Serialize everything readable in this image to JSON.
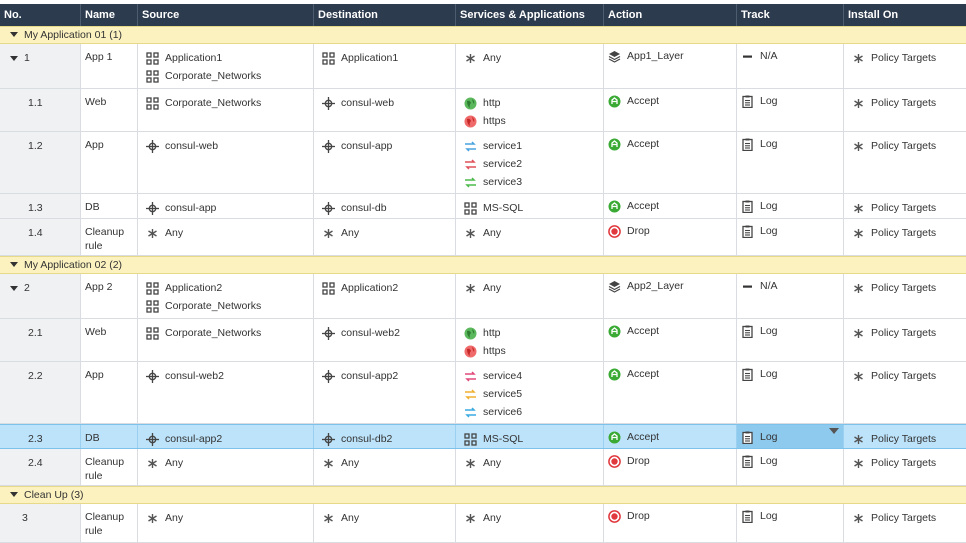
{
  "columns": [
    "No.",
    "Name",
    "Source",
    "Destination",
    "Services & Applications",
    "Action",
    "Track",
    "Install On"
  ],
  "sections": [
    {
      "label": "My Application 01 (1)"
    },
    {
      "label": "My Application 02 (2)"
    },
    {
      "label": "Clean Up (3)"
    }
  ],
  "rows": [
    {
      "no": "1",
      "name": "App 1",
      "source": [
        "Application1",
        "Corporate_Networks"
      ],
      "destination": "Application1",
      "services": [
        "Any"
      ],
      "action": "App1_Layer",
      "track": "N/A",
      "install": "Policy Targets"
    },
    {
      "no": "1.1",
      "name": "Web",
      "source": [
        "Corporate_Networks"
      ],
      "destination": "consul-web",
      "services": [
        "http",
        "https"
      ],
      "action": "Accept",
      "track": "Log",
      "install": "Policy Targets"
    },
    {
      "no": "1.2",
      "name": "App",
      "source": [
        "consul-web"
      ],
      "destination": "consul-app",
      "services": [
        "service1",
        "service2",
        "service3"
      ],
      "action": "Accept",
      "track": "Log",
      "install": "Policy Targets"
    },
    {
      "no": "1.3",
      "name": "DB",
      "source": [
        "consul-app"
      ],
      "destination": "consul-db",
      "services": [
        "MS-SQL"
      ],
      "action": "Accept",
      "track": "Log",
      "install": "Policy Targets"
    },
    {
      "no": "1.4",
      "name": [
        "Cleanup",
        "rule"
      ],
      "source": [
        "Any"
      ],
      "destination": "Any",
      "services": [
        "Any"
      ],
      "action": "Drop",
      "track": "Log",
      "install": "Policy Targets"
    },
    {
      "no": "2",
      "name": "App 2",
      "source": [
        "Application2",
        "Corporate_Networks"
      ],
      "destination": "Application2",
      "services": [
        "Any"
      ],
      "action": "App2_Layer",
      "track": "N/A",
      "install": "Policy Targets"
    },
    {
      "no": "2.1",
      "name": "Web",
      "source": [
        "Corporate_Networks"
      ],
      "destination": "consul-web2",
      "services": [
        "http",
        "https"
      ],
      "action": "Accept",
      "track": "Log",
      "install": "Policy Targets"
    },
    {
      "no": "2.2",
      "name": "App",
      "source": [
        "consul-web2"
      ],
      "destination": "consul-app2",
      "services": [
        "service4",
        "service5",
        "service6"
      ],
      "action": "Accept",
      "track": "Log",
      "install": "Policy Targets"
    },
    {
      "no": "2.3",
      "name": "DB",
      "source": [
        "consul-app2"
      ],
      "destination": "consul-db2",
      "services": [
        "MS-SQL"
      ],
      "action": "Accept",
      "track": "Log",
      "install": "Policy Targets"
    },
    {
      "no": "2.4",
      "name": [
        "Cleanup",
        "rule"
      ],
      "source": [
        "Any"
      ],
      "destination": "Any",
      "services": [
        "Any"
      ],
      "action": "Drop",
      "track": "Log",
      "install": "Policy Targets"
    },
    {
      "no": "3",
      "name": [
        "Cleanup",
        "rule"
      ],
      "source": [
        "Any"
      ],
      "destination": "Any",
      "services": [
        "Any"
      ],
      "action": "Drop",
      "track": "Log",
      "install": "Policy Targets"
    }
  ],
  "colors": {
    "header_bg": "#2d3b4e",
    "section_bg": "#fbf2c0",
    "selected_bg": "#bde3fa",
    "accept": "#3aaa35",
    "drop": "#e0393e"
  }
}
